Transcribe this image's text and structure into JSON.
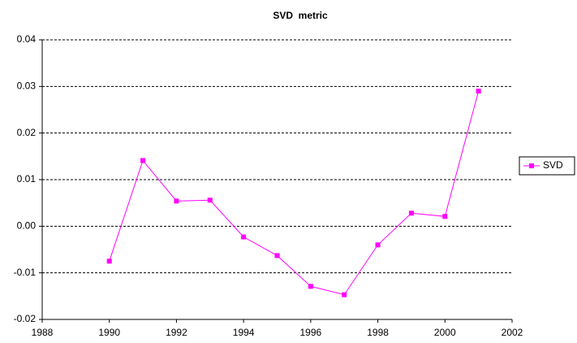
{
  "chart_data": {
    "type": "line",
    "title": "SVD  metric",
    "x": [
      1990,
      1991,
      1992,
      1993,
      1994,
      1995,
      1996,
      1997,
      1998,
      1999,
      2000,
      2001
    ],
    "series": [
      {
        "name": "SVD",
        "color": "#ff00ff",
        "values": [
          -0.0075,
          0.0141,
          0.0054,
          0.0056,
          -0.0023,
          -0.0063,
          -0.0129,
          -0.0147,
          -0.004,
          0.0028,
          0.0021,
          0.029
        ]
      }
    ],
    "xlim": [
      1988,
      2002
    ],
    "xticks": [
      1988,
      1990,
      1992,
      1994,
      1996,
      1998,
      2000,
      2002
    ],
    "ylim": [
      -0.02,
      0.04
    ],
    "yticks": [
      -0.02,
      -0.01,
      {
        "value": 0,
        "label": "0.00"
      },
      0.01,
      0.02,
      0.03,
      0.04
    ],
    "grid": true,
    "legend": "right"
  }
}
